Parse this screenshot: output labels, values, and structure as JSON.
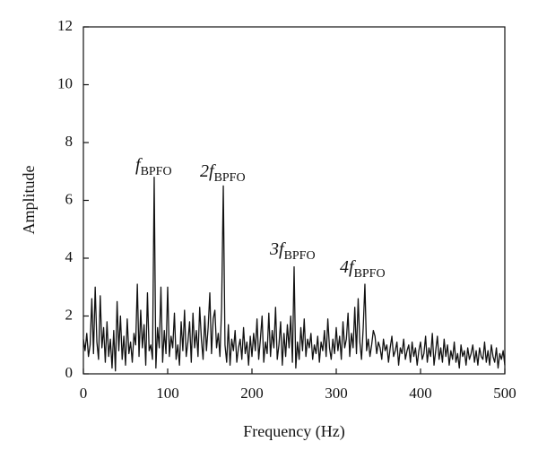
{
  "chart_data": {
    "type": "line",
    "xlabel": "Frequency (Hz)",
    "ylabel": "Amplitude",
    "xlim": [
      0,
      500
    ],
    "ylim": [
      0,
      12
    ],
    "xticks": [
      0,
      100,
      200,
      300,
      400,
      500
    ],
    "yticks": [
      0,
      2,
      4,
      6,
      8,
      10,
      12
    ],
    "annotations": [
      {
        "text": "f",
        "sub": "BPFO"
      },
      {
        "text": "2f",
        "sub": "BPFO"
      },
      {
        "text": "3f",
        "sub": "BPFO"
      },
      {
        "text": "4f",
        "sub": "BPFO"
      }
    ],
    "x": [
      0,
      2,
      4,
      6,
      8,
      10,
      12,
      14,
      16,
      18,
      20,
      22,
      24,
      26,
      28,
      30,
      32,
      34,
      36,
      38,
      40,
      42,
      44,
      46,
      48,
      50,
      52,
      54,
      56,
      58,
      60,
      62,
      64,
      66,
      68,
      70,
      72,
      74,
      76,
      78,
      80,
      82,
      84,
      86,
      88,
      90,
      92,
      94,
      96,
      98,
      100,
      102,
      104,
      106,
      108,
      110,
      112,
      114,
      116,
      118,
      120,
      122,
      124,
      126,
      128,
      130,
      132,
      134,
      136,
      138,
      140,
      142,
      144,
      146,
      148,
      150,
      152,
      154,
      156,
      158,
      160,
      162,
      164,
      166,
      168,
      170,
      172,
      174,
      176,
      178,
      180,
      182,
      184,
      186,
      188,
      190,
      192,
      194,
      196,
      198,
      200,
      202,
      204,
      206,
      208,
      210,
      212,
      214,
      216,
      218,
      220,
      222,
      224,
      226,
      228,
      230,
      232,
      234,
      236,
      238,
      240,
      242,
      244,
      246,
      248,
      250,
      252,
      254,
      256,
      258,
      260,
      262,
      264,
      266,
      268,
      270,
      272,
      274,
      276,
      278,
      280,
      282,
      284,
      286,
      288,
      290,
      292,
      294,
      296,
      298,
      300,
      302,
      304,
      306,
      308,
      310,
      312,
      314,
      316,
      318,
      320,
      322,
      324,
      326,
      328,
      330,
      332,
      334,
      336,
      338,
      340,
      342,
      344,
      346,
      348,
      350,
      352,
      354,
      356,
      358,
      360,
      362,
      364,
      366,
      368,
      370,
      372,
      374,
      376,
      378,
      380,
      382,
      384,
      386,
      388,
      390,
      392,
      394,
      396,
      398,
      400,
      402,
      404,
      406,
      408,
      410,
      412,
      414,
      416,
      418,
      420,
      422,
      424,
      426,
      428,
      430,
      432,
      434,
      436,
      438,
      440,
      442,
      444,
      446,
      448,
      450,
      452,
      454,
      456,
      458,
      460,
      462,
      464,
      466,
      468,
      470,
      472,
      474,
      476,
      478,
      480,
      482,
      484,
      486,
      488,
      490,
      492,
      494,
      496,
      498,
      500
    ],
    "series": [
      {
        "color": "#111111",
        "values": [
          1.2,
          0.8,
          1.4,
          0.6,
          1.0,
          2.6,
          0.7,
          3.0,
          1.1,
          0.5,
          2.7,
          0.9,
          1.6,
          0.4,
          1.8,
          0.6,
          1.2,
          0.2,
          1.5,
          0.1,
          2.5,
          0.8,
          2.0,
          0.5,
          1.3,
          0.3,
          1.9,
          0.7,
          1.1,
          0.4,
          1.4,
          1.0,
          3.1,
          0.6,
          2.2,
          0.9,
          1.7,
          0.3,
          2.8,
          0.8,
          1.0,
          0.5,
          6.8,
          0.2,
          1.6,
          0.9,
          3.0,
          0.4,
          1.5,
          0.7,
          3.0,
          0.6,
          1.3,
          0.9,
          2.1,
          0.5,
          1.0,
          0.3,
          1.8,
          0.8,
          2.2,
          0.6,
          1.1,
          1.8,
          0.4,
          2.1,
          0.9,
          1.5,
          0.6,
          2.3,
          1.2,
          0.5,
          2.0,
          0.8,
          1.6,
          2.8,
          0.7,
          1.9,
          2.2,
          0.9,
          1.4,
          0.6,
          2.3,
          6.5,
          1.0,
          0.4,
          1.7,
          0.3,
          1.2,
          0.8,
          1.5,
          0.4,
          0.9,
          1.2,
          0.5,
          1.6,
          0.7,
          1.1,
          0.3,
          1.3,
          0.6,
          1.4,
          0.8,
          1.9,
          0.5,
          1.2,
          2.0,
          0.4,
          1.1,
          0.7,
          2.1,
          0.6,
          1.5,
          0.9,
          2.3,
          0.5,
          1.0,
          1.8,
          0.3,
          1.4,
          0.6,
          1.7,
          0.9,
          2.0,
          0.4,
          3.7,
          0.2,
          1.1,
          0.5,
          1.6,
          0.8,
          1.9,
          0.6,
          1.2,
          0.9,
          1.4,
          0.5,
          1.0,
          0.7,
          1.3,
          0.4,
          1.1,
          0.8,
          1.5,
          0.6,
          1.9,
          0.9,
          0.5,
          1.2,
          0.7,
          1.6,
          0.8,
          1.3,
          0.5,
          1.8,
          0.9,
          1.2,
          2.1,
          0.6,
          1.4,
          0.9,
          2.3,
          0.7,
          2.6,
          1.1,
          0.5,
          1.6,
          3.1,
          0.8,
          1.2,
          0.6,
          1.0,
          1.5,
          1.3,
          0.7,
          1.1,
          0.9,
          0.5,
          1.2,
          0.8,
          1.0,
          0.4,
          0.9,
          1.3,
          0.6,
          0.8,
          1.1,
          0.3,
          0.9,
          0.7,
          1.2,
          0.5,
          0.8,
          1.0,
          0.4,
          1.1,
          0.6,
          0.9,
          0.3,
          0.8,
          1.1,
          0.5,
          0.7,
          1.3,
          0.4,
          0.9,
          0.6,
          1.4,
          0.3,
          0.8,
          1.3,
          0.5,
          0.9,
          0.4,
          1.2,
          0.6,
          1.0,
          0.3,
          0.8,
          0.5,
          1.1,
          0.4,
          0.7,
          0.2,
          1.0,
          0.6,
          0.8,
          0.3,
          0.9,
          0.5,
          0.7,
          1.0,
          0.4,
          0.8,
          0.3,
          0.9,
          0.6,
          0.5,
          1.1,
          0.4,
          0.8,
          0.3,
          1.0,
          0.6,
          0.4,
          0.9,
          0.2,
          0.7,
          0.5,
          0.8,
          0.3
        ]
      }
    ]
  }
}
